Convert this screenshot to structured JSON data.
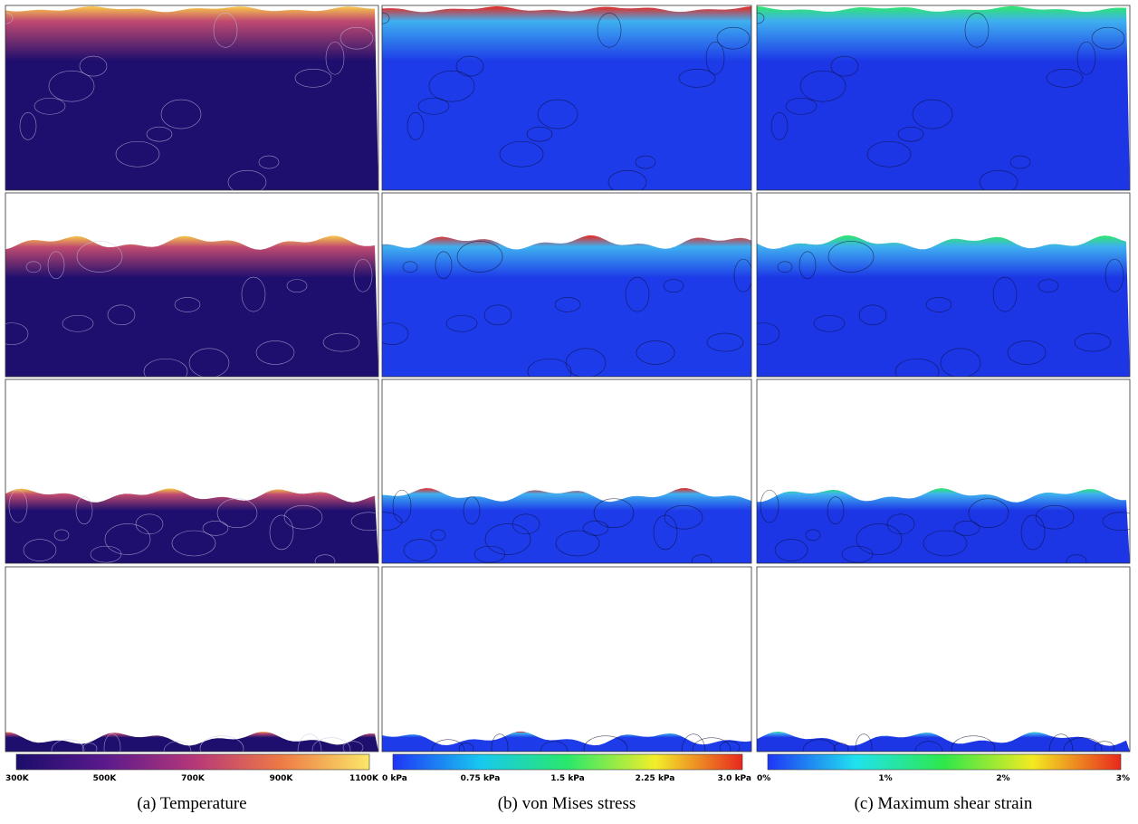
{
  "panels": [
    {
      "caption": "(a) Temperature",
      "colorbar": {
        "ticks": [
          "300K",
          "500K",
          "700K",
          "900K",
          "1100K"
        ],
        "colors": [
          "#1b0c6b",
          "#5a1a8c",
          "#b5367a",
          "#ee7a45",
          "#fbe76a"
        ]
      }
    },
    {
      "caption": "(b) von Mises stress",
      "colorbar": {
        "ticks": [
          "0 kPa",
          "0.75 kPa",
          "1.5 kPa",
          "2.25 kPa",
          "3.0 kPa"
        ],
        "colors": [
          "#1f35f5",
          "#18c8f0",
          "#29e86a",
          "#f2ee2a",
          "#e8281e"
        ]
      }
    },
    {
      "caption": "(c) Maximum shear strain",
      "colorbar": {
        "ticks": [
          "0%",
          "1%",
          "2%",
          "3%"
        ],
        "colors": [
          "#1f35f5",
          "#20e2ee",
          "#2ee84a",
          "#f3ea22",
          "#e8281e"
        ]
      }
    }
  ]
}
